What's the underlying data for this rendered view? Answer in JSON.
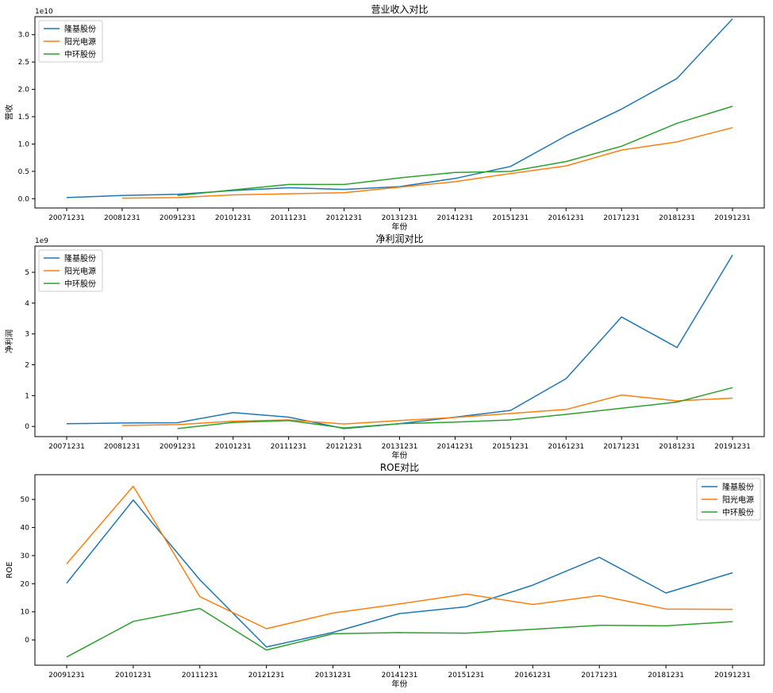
{
  "chart_data": [
    {
      "type": "line",
      "title": "营业收入对比",
      "xlabel": "年份",
      "ylabel": "营收",
      "offset_label": "1e10",
      "scale": 10000000000.0,
      "categories": [
        "20071231",
        "20081231",
        "20091231",
        "20101231",
        "20111231",
        "20121231",
        "20131231",
        "20141231",
        "20151231",
        "20161231",
        "20171231",
        "20181231",
        "20191231"
      ],
      "yticks": [
        0,
        0.5,
        1.0,
        1.5,
        2.0,
        2.5,
        3.0
      ],
      "ytick_labels": [
        "0.0",
        "0.5",
        "1.0",
        "1.5",
        "2.0",
        "2.5",
        "3.0"
      ],
      "ylim": [
        -0.17,
        3.33
      ],
      "legend": "upper-left",
      "series": [
        {
          "name": "隆基股份",
          "color": "#1f77b4",
          "values": [
            0.02,
            0.06,
            0.08,
            0.15,
            0.2,
            0.17,
            0.22,
            0.37,
            0.59,
            1.15,
            1.64,
            2.2,
            3.29
          ]
        },
        {
          "name": "阳光电源",
          "color": "#ff7f0e",
          "values": [
            null,
            0.01,
            0.02,
            0.07,
            0.09,
            0.11,
            0.21,
            0.31,
            0.46,
            0.6,
            0.89,
            1.04,
            1.3
          ]
        },
        {
          "name": "中环股份",
          "color": "#2ca02c",
          "values": [
            null,
            null,
            0.06,
            0.16,
            0.26,
            0.26,
            0.38,
            0.48,
            0.5,
            0.68,
            0.96,
            1.38,
            1.69
          ]
        }
      ]
    },
    {
      "type": "line",
      "title": "净利润对比",
      "xlabel": "年份",
      "ylabel": "净利润",
      "offset_label": "1e9",
      "scale": 1000000000.0,
      "categories": [
        "20071231",
        "20081231",
        "20091231",
        "20101231",
        "20111231",
        "20121231",
        "20131231",
        "20141231",
        "20151231",
        "20161231",
        "20171231",
        "20181231",
        "20191231"
      ],
      "yticks": [
        0,
        1,
        2,
        3,
        4,
        5
      ],
      "ytick_labels": [
        "0",
        "1",
        "2",
        "3",
        "4",
        "5"
      ],
      "ylim": [
        -0.33,
        5.85
      ],
      "legend": "upper-left",
      "series": [
        {
          "name": "隆基股份",
          "color": "#1f77b4",
          "values": [
            0.09,
            0.11,
            0.12,
            0.45,
            0.3,
            -0.07,
            0.09,
            0.3,
            0.52,
            1.55,
            3.55,
            2.56,
            5.56
          ]
        },
        {
          "name": "阳光电源",
          "color": "#ff7f0e",
          "values": [
            null,
            0.03,
            0.06,
            0.17,
            0.21,
            0.08,
            0.19,
            0.29,
            0.42,
            0.55,
            1.02,
            0.83,
            0.92
          ]
        },
        {
          "name": "中环股份",
          "color": "#2ca02c",
          "values": [
            null,
            null,
            -0.07,
            0.13,
            0.19,
            -0.05,
            0.09,
            0.14,
            0.21,
            0.39,
            0.59,
            0.79,
            1.26
          ]
        }
      ]
    },
    {
      "type": "line",
      "title": "ROE对比",
      "xlabel": "年份",
      "ylabel": "ROE",
      "offset_label": "",
      "scale": 1,
      "categories": [
        "20091231",
        "20101231",
        "20111231",
        "20121231",
        "20131231",
        "20141231",
        "20151231",
        "20161231",
        "20171231",
        "20181231",
        "20191231"
      ],
      "yticks": [
        0,
        10,
        20,
        30,
        40,
        50
      ],
      "ytick_labels": [
        "0",
        "10",
        "20",
        "30",
        "40",
        "50"
      ],
      "ylim": [
        -9,
        58.8
      ],
      "legend": "upper-right",
      "series": [
        {
          "name": "隆基股份",
          "color": "#1f77b4",
          "values": [
            20.2,
            49.8,
            21.4,
            -2.5,
            2.7,
            9.4,
            11.8,
            19.5,
            29.4,
            16.7,
            23.9
          ]
        },
        {
          "name": "阳光电源",
          "color": "#ff7f0e",
          "values": [
            27.1,
            54.7,
            15.4,
            4.0,
            9.6,
            12.8,
            16.3,
            12.6,
            15.8,
            11.0,
            10.9
          ]
        },
        {
          "name": "中环股份",
          "color": "#2ca02c",
          "values": [
            -6.1,
            6.6,
            11.2,
            -3.6,
            2.2,
            2.6,
            2.4,
            3.8,
            5.2,
            5.0,
            6.5
          ]
        }
      ]
    }
  ]
}
